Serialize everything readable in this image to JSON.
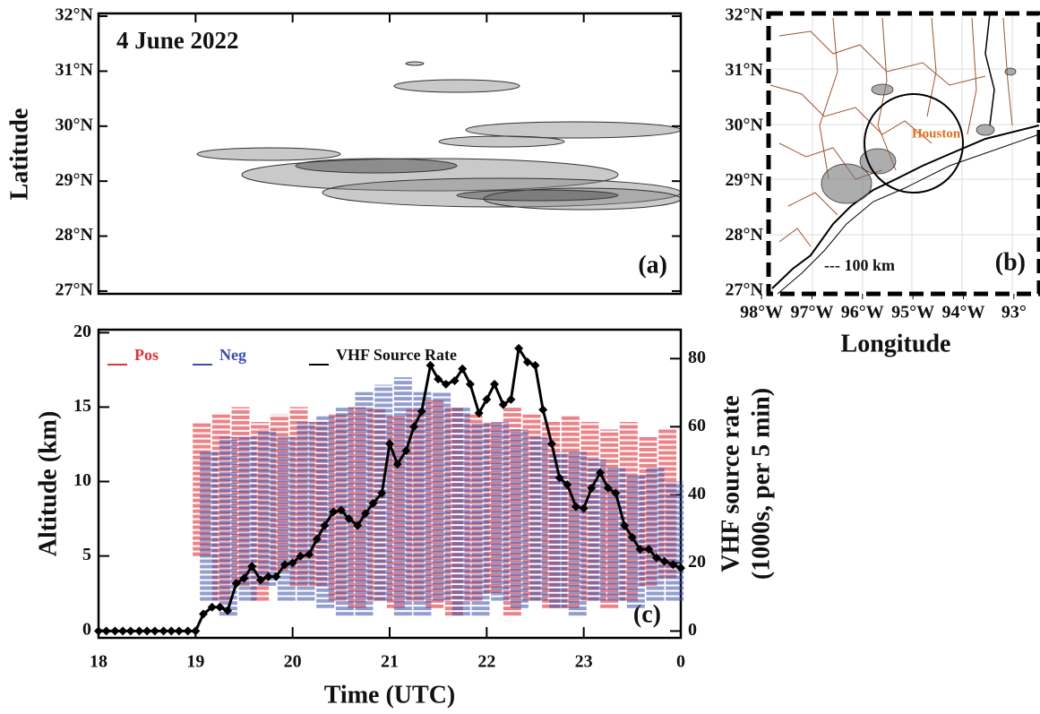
{
  "chart_data": [
    {
      "type": "map",
      "title": "4 June 2022",
      "panel_label": "(a)",
      "ylabel": "Latitude",
      "ylim": [
        26.95,
        32.05
      ],
      "yticks": [
        {
          "value": 32,
          "label": "32°N"
        },
        {
          "value": 31,
          "label": "31°N"
        },
        {
          "value": 30,
          "label": "30°N"
        },
        {
          "value": 29,
          "label": "29°N"
        },
        {
          "value": 28,
          "label": "28°N"
        },
        {
          "value": 27,
          "label": "27°N"
        }
      ]
    },
    {
      "type": "map",
      "panel_label": "(b)",
      "xlabel": "Longitude",
      "annotations": [
        "Houston",
        "--- 100 km"
      ],
      "xlim": [
        97.86,
        92.5
      ],
      "ylim": [
        26.95,
        32.05
      ],
      "xticks": [
        {
          "value": 98,
          "label": "98°W"
        },
        {
          "value": 97,
          "label": "97°W"
        },
        {
          "value": 96,
          "label": "96°W"
        },
        {
          "value": 95,
          "label": "95°W"
        },
        {
          "value": 94,
          "label": "94°W"
        },
        {
          "value": 93,
          "label": "93°"
        }
      ],
      "yticks": [
        {
          "value": 32,
          "label": "32°N"
        },
        {
          "value": 31,
          "label": "31°N"
        },
        {
          "value": 30,
          "label": "30°N"
        },
        {
          "value": 29,
          "label": "29°N"
        },
        {
          "value": 28,
          "label": "28°N"
        },
        {
          "value": 27,
          "label": "27°N"
        }
      ]
    },
    {
      "type": "line",
      "panel_label": "(c)",
      "xlabel": "Time (UTC)",
      "ylabel": "Altitude (km)",
      "y2label": [
        "VHF source rate",
        "(1000s, per 5 min)"
      ],
      "xlim": [
        18,
        24
      ],
      "xticks": [
        18,
        19,
        20,
        21,
        22,
        23,
        {
          "value": 24,
          "label": "0"
        }
      ],
      "ylim": [
        -0.5,
        20.2
      ],
      "yticks": [
        0,
        5,
        10,
        15,
        20
      ],
      "y2lim": [
        -2,
        88.5
      ],
      "y2ticks": [
        0,
        20,
        40,
        60,
        80
      ],
      "ranges": [
        {
          "name": "Pos",
          "color": "#e0303a",
          "x": [
            19.1,
            19.3,
            19.5,
            19.7,
            19.9,
            20.1,
            20.3,
            20.5,
            20.7,
            20.9,
            21.1,
            21.3,
            21.5,
            21.7,
            21.9,
            22.1,
            22.3,
            22.5,
            22.7,
            22.9,
            23.1,
            23.3,
            23.5,
            23.7,
            23.9
          ],
          "low": [
            5,
            2,
            3,
            2,
            4,
            3,
            3,
            2,
            1.5,
            2,
            1.5,
            2,
            1.5,
            1,
            2,
            2.5,
            1,
            2,
            1.5,
            1.5,
            2,
            1.5,
            2,
            3,
            3.5
          ],
          "high": [
            14,
            14.5,
            15,
            14,
            14.5,
            15,
            14,
            14.5,
            15,
            15,
            14.5,
            15,
            15.5,
            15,
            14.5,
            14,
            15,
            14.5,
            14,
            14.5,
            14,
            13.5,
            14,
            13,
            13.5
          ]
        },
        {
          "name": "Neg",
          "color": "#3b4fa8",
          "x": [
            19.1,
            19.3,
            19.5,
            19.7,
            19.9,
            20.1,
            20.3,
            20.5,
            20.7,
            20.9,
            21.1,
            21.3,
            21.5,
            21.7,
            21.9,
            22.1,
            22.3,
            22.5,
            22.7,
            22.9,
            23.1,
            23.3,
            23.5,
            23.7,
            23.9
          ],
          "low": [
            2,
            1,
            2,
            3,
            2,
            2,
            1.5,
            1,
            1,
            2,
            1,
            1,
            2,
            1,
            1,
            2,
            1.5,
            2,
            1.5,
            1,
            2,
            2,
            1.5,
            2,
            2
          ],
          "high": [
            12,
            13,
            13,
            13.5,
            13,
            14,
            14.5,
            15,
            16,
            16.5,
            17,
            16,
            16,
            15,
            14,
            14,
            13.5,
            13,
            12,
            12,
            11.5,
            11,
            10.5,
            11,
            10
          ]
        }
      ],
      "series": [
        {
          "name": "VHF Source Rate",
          "color": "#000000",
          "axis": "y2",
          "x": [
            18,
            18.08,
            18.17,
            18.25,
            18.33,
            18.42,
            18.5,
            18.58,
            18.67,
            18.75,
            18.83,
            18.92,
            19,
            19.08,
            19.17,
            19.25,
            19.33,
            19.42,
            19.5,
            19.58,
            19.67,
            19.75,
            19.83,
            19.92,
            20,
            20.08,
            20.17,
            20.25,
            20.33,
            20.42,
            20.5,
            20.58,
            20.67,
            20.75,
            20.83,
            20.92,
            21,
            21.08,
            21.17,
            21.25,
            21.33,
            21.42,
            21.5,
            21.58,
            21.67,
            21.75,
            21.83,
            21.92,
            22,
            22.08,
            22.17,
            22.25,
            22.33,
            22.42,
            22.5,
            22.58,
            22.67,
            22.75,
            22.83,
            22.92,
            23,
            23.08,
            23.17,
            23.25,
            23.33,
            23.42,
            23.5,
            23.58,
            23.67,
            23.75,
            23.83,
            23.92,
            24
          ],
          "values": [
            0,
            0,
            0,
            0,
            0,
            0,
            0,
            0,
            0,
            0,
            0,
            0,
            0,
            5,
            7,
            7,
            6,
            14,
            15.5,
            19,
            15,
            16,
            16,
            19.5,
            20,
            22,
            22.5,
            27,
            31,
            35,
            35.5,
            33,
            31,
            34.5,
            37.5,
            40.5,
            55,
            49,
            53,
            60,
            64.5,
            78,
            74,
            72.5,
            73.5,
            77,
            72.5,
            64,
            68,
            72.5,
            66.5,
            68,
            83,
            79,
            78,
            65,
            55,
            45,
            43,
            36.5,
            36,
            42,
            46.5,
            42,
            40.5,
            31,
            27.5,
            24,
            24,
            21.5,
            20.5,
            19.5,
            18.5
          ]
        }
      ]
    }
  ]
}
